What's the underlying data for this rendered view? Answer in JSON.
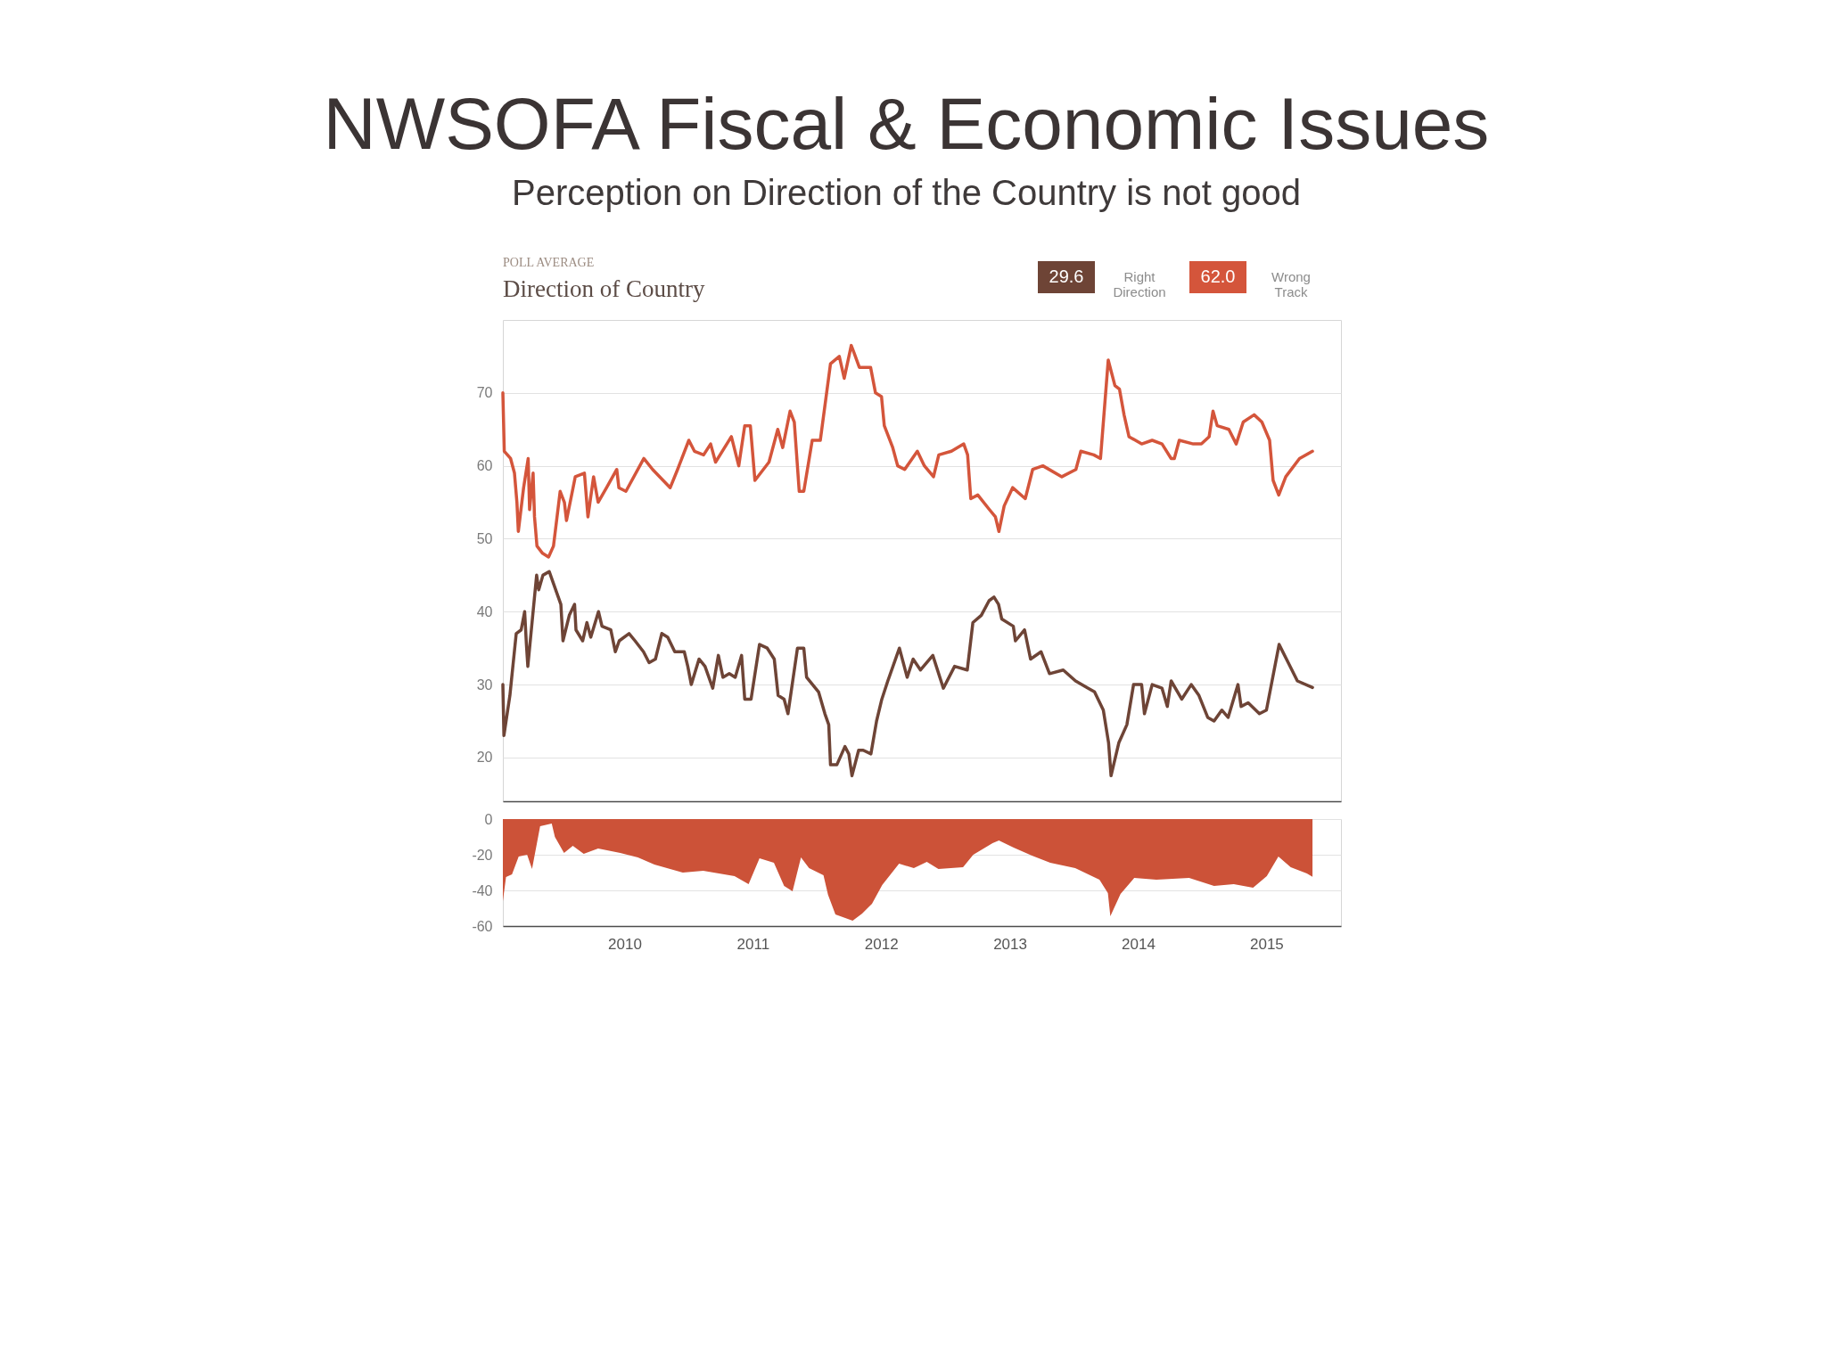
{
  "chart_data": [
    {
      "type": "line",
      "title": "NWSOFA Fiscal & Economic Issues",
      "subtitle": "Perception on Direction of the Country is not good",
      "annotations": [
        "POLL AVERAGE",
        "Direction of Country",
        "29.6",
        "62.0"
      ],
      "legend": "top right",
      "tick_labels": "y",
      "grid": "y",
      "xlim": [
        "2009-01-20",
        "2015-08-01"
      ],
      "ylim": [
        14,
        80
      ],
      "yticks": [
        20,
        30,
        40,
        50,
        60,
        70
      ],
      "series": [
        {
          "name": "Right Direction",
          "color": "#6e4436",
          "x": [
            "2009-01-20",
            "2009-01-23",
            "2009-02-09",
            "2009-02-27",
            "2009-03-13",
            "2009-03-23",
            "2009-03-28",
            "2009-04-01",
            "2009-04-26",
            "2009-05-02",
            "2009-05-14",
            "2009-06-01",
            "2009-06-12",
            "2009-06-23",
            "2009-07-04",
            "2009-07-10",
            "2009-07-28",
            "2009-08-12",
            "2009-08-16",
            "2009-09-04",
            "2009-09-16",
            "2009-09-27",
            "2009-10-19",
            "2009-10-29",
            "2009-11-23",
            "2009-12-06",
            "2009-12-17",
            "2010-01-14",
            "2010-01-31",
            "2010-02-24",
            "2010-03-12",
            "2010-03-30",
            "2010-04-17",
            "2010-05-04",
            "2010-05-24",
            "2010-06-20",
            "2010-06-30",
            "2010-07-10",
            "2010-08-01",
            "2010-08-18",
            "2010-09-09",
            "2010-09-25",
            "2010-10-08",
            "2010-10-26",
            "2010-11-12",
            "2010-11-30",
            "2010-12-09",
            "2010-12-27",
            "2011-01-20",
            "2011-02-11",
            "2011-03-03",
            "2011-03-14",
            "2011-03-31",
            "2011-04-11",
            "2011-05-08",
            "2011-05-26",
            "2011-06-03",
            "2011-07-07",
            "2011-07-25",
            "2011-08-05",
            "2011-08-10",
            "2011-08-28",
            "2011-09-20",
            "2011-10-01",
            "2011-10-10",
            "2011-10-29",
            "2011-11-11",
            "2011-12-03",
            "2011-12-19",
            "2012-01-03",
            "2012-01-20",
            "2012-02-22",
            "2012-03-15",
            "2012-04-01",
            "2012-04-22",
            "2012-05-27",
            "2012-06-26",
            "2012-07-28",
            "2012-09-02",
            "2012-09-18",
            "2012-10-12",
            "2012-11-03",
            "2012-11-17",
            "2012-11-30",
            "2012-12-09",
            "2013-01-11",
            "2013-01-17",
            "2013-02-12",
            "2013-03-01",
            "2013-03-31",
            "2013-04-24",
            "2013-06-02",
            "2013-07-07",
            "2013-08-12",
            "2013-08-30",
            "2013-09-24",
            "2013-10-09",
            "2013-10-16",
            "2013-11-07",
            "2013-11-30",
            "2013-12-19",
            "2014-01-11",
            "2014-01-19",
            "2014-02-10",
            "2014-03-10",
            "2014-03-25",
            "2014-04-05",
            "2014-05-05",
            "2014-06-01",
            "2014-06-23",
            "2014-07-18",
            "2014-08-05",
            "2014-08-27",
            "2014-09-14",
            "2014-10-12",
            "2014-10-21",
            "2014-11-10",
            "2014-12-12",
            "2015-01-01",
            "2015-02-06",
            "2015-03-04",
            "2015-03-30",
            "2015-05-12"
          ],
          "values": [
            30,
            23,
            28.5,
            37,
            37.5,
            40,
            35.5,
            32.5,
            45,
            43,
            45,
            45.5,
            44,
            42.5,
            41,
            36,
            39.5,
            41,
            37.5,
            36,
            38.5,
            36.5,
            40,
            38,
            37.5,
            34.5,
            36,
            37,
            36,
            34.5,
            33,
            33.5,
            37,
            36.5,
            34.5,
            34.5,
            32.5,
            30,
            33.5,
            32.5,
            29.5,
            34,
            31,
            31.5,
            31,
            34,
            28,
            28,
            35.5,
            35,
            33.5,
            28.5,
            28,
            26,
            35,
            35,
            31,
            29,
            26,
            24.5,
            19,
            19,
            21.5,
            20.5,
            17.5,
            21,
            21,
            20.5,
            25,
            28,
            30.5,
            35,
            31,
            33.5,
            32,
            34,
            29.5,
            32.5,
            32,
            38.5,
            39.5,
            41.5,
            42,
            41,
            39,
            38,
            36,
            37.5,
            33.5,
            34.5,
            31.5,
            32,
            30.5,
            29.5,
            29,
            26.5,
            22,
            17.5,
            22,
            24.5,
            30,
            30,
            26,
            30,
            29.5,
            27,
            30.5,
            28,
            30,
            28.5,
            25.5,
            25,
            26.5,
            25.5,
            30,
            27,
            27.5,
            26,
            26.5,
            35.5,
            33,
            30.5,
            29.6
          ]
        },
        {
          "name": "Wrong Track",
          "color": "#d4553b",
          "x": [
            "2009-01-20",
            "2009-01-24",
            "2009-02-11",
            "2009-02-22",
            "2009-03-01",
            "2009-03-05",
            "2009-03-20",
            "2009-04-02",
            "2009-04-06",
            "2009-04-16",
            "2009-04-20",
            "2009-04-27",
            "2009-05-13",
            "2009-05-30",
            "2009-06-13",
            "2009-07-02",
            "2009-07-14",
            "2009-07-20",
            "2009-08-14",
            "2009-09-09",
            "2009-09-19",
            "2009-10-05",
            "2009-10-18",
            "2009-11-11",
            "2009-12-10",
            "2009-12-16",
            "2010-01-05",
            "2010-02-25",
            "2010-03-22",
            "2010-05-11",
            "2010-06-01",
            "2010-07-03",
            "2010-07-19",
            "2010-08-14",
            "2010-09-03",
            "2010-09-17",
            "2010-11-01",
            "2010-11-22",
            "2010-12-09",
            "2010-12-25",
            "2011-01-07",
            "2011-02-16",
            "2011-03-13",
            "2011-03-27",
            "2011-04-17",
            "2011-04-29",
            "2011-05-13",
            "2011-05-26",
            "2011-06-19",
            "2011-07-12",
            "2011-08-10",
            "2011-09-04",
            "2011-09-18",
            "2011-10-08",
            "2011-10-16",
            "2011-10-31",
            "2011-12-02",
            "2011-12-16",
            "2012-01-02",
            "2012-01-10",
            "2012-02-03",
            "2012-02-17",
            "2012-03-08",
            "2012-04-13",
            "2012-05-03",
            "2012-05-29",
            "2012-06-13",
            "2012-07-19",
            "2012-08-23",
            "2012-09-03",
            "2012-09-12",
            "2012-10-02",
            "2012-11-04",
            "2012-11-21",
            "2012-12-01",
            "2012-12-16",
            "2013-01-09",
            "2013-02-14",
            "2013-03-07",
            "2013-04-05",
            "2013-05-29",
            "2013-07-08",
            "2013-07-22",
            "2013-08-28",
            "2013-09-16",
            "2013-10-08",
            "2013-10-27",
            "2013-11-09",
            "2013-11-22",
            "2013-12-06",
            "2014-01-11",
            "2014-02-10",
            "2014-03-10",
            "2014-04-05",
            "2014-04-14",
            "2014-04-28",
            "2014-06-07",
            "2014-06-30",
            "2014-07-22",
            "2014-08-02",
            "2014-08-14",
            "2014-09-16",
            "2014-10-07",
            "2014-10-27",
            "2014-11-27",
            "2014-12-19",
            "2015-01-10",
            "2015-01-20",
            "2015-02-05",
            "2015-02-25",
            "2015-04-05",
            "2015-05-12"
          ],
          "values": [
            70,
            62,
            61,
            59,
            55,
            51,
            57,
            61,
            54,
            59,
            53,
            49,
            48,
            47.5,
            49,
            56.5,
            55,
            52.5,
            58.5,
            59,
            53,
            58.5,
            55,
            57,
            59.5,
            57,
            56.5,
            61,
            59.5,
            57,
            59.5,
            63.5,
            62,
            61.5,
            63,
            60.5,
            64,
            60,
            65.5,
            65.5,
            58,
            60.5,
            65,
            62.5,
            67.5,
            66,
            56.5,
            56.5,
            63.5,
            63.5,
            74,
            75,
            72,
            76.5,
            75.5,
            73.5,
            73.5,
            70,
            69.5,
            65.5,
            62.5,
            60,
            59.5,
            62,
            60,
            58.5,
            61.5,
            62,
            63,
            61.5,
            55.5,
            56,
            54,
            53,
            51,
            54.5,
            57,
            55.5,
            59.5,
            60,
            58.5,
            59.5,
            62,
            61.5,
            61,
            74.5,
            71,
            70.5,
            67,
            64,
            63,
            63.5,
            63,
            61,
            61,
            63.5,
            63,
            63,
            64,
            67.5,
            65.5,
            65,
            63,
            66,
            67,
            66,
            63.5,
            58,
            56,
            58.5,
            61,
            62.0
          ]
        }
      ]
    },
    {
      "type": "area",
      "color": "#cc5238",
      "xlim": [
        "2009-01-20",
        "2015-08-01"
      ],
      "xticks": [
        "2010",
        "2011",
        "2012",
        "2013",
        "2014",
        "2015"
      ],
      "ylim": [
        -60,
        0
      ],
      "yticks": [
        0,
        -20,
        -40,
        -60
      ],
      "grid": "y",
      "x": [
        "2009-01-20",
        "2009-01-29",
        "2009-02-15",
        "2009-03-06",
        "2009-03-30",
        "2009-04-13",
        "2009-05-06",
        "2009-06-08",
        "2009-06-17",
        "2009-07-13",
        "2009-08-07",
        "2009-09-07",
        "2009-10-18",
        "2009-12-20",
        "2010-02-08",
        "2010-03-27",
        "2010-06-16",
        "2010-08-13",
        "2010-11-10",
        "2010-12-20",
        "2011-01-20",
        "2011-03-02",
        "2011-03-31",
        "2011-04-24",
        "2011-05-18",
        "2011-06-10",
        "2011-07-21",
        "2011-08-03",
        "2011-08-24",
        "2011-10-12",
        "2011-11-08",
        "2011-12-06",
        "2012-01-04",
        "2012-02-21",
        "2012-04-03",
        "2012-05-10",
        "2012-06-12",
        "2012-08-21",
        "2012-09-19",
        "2012-11-13",
        "2012-12-01",
        "2013-01-12",
        "2013-03-05",
        "2013-04-26",
        "2013-07-06",
        "2013-09-13",
        "2013-10-07",
        "2013-10-14",
        "2013-11-12",
        "2013-12-21",
        "2014-02-22",
        "2014-05-26",
        "2014-08-05",
        "2014-09-30",
        "2014-11-24",
        "2015-01-02",
        "2015-02-04",
        "2015-03-11",
        "2015-04-26",
        "2015-05-12"
      ],
      "values": [
        -46,
        -32.5,
        -31,
        -21,
        -20,
        -28,
        -4,
        -2.5,
        -10,
        -19,
        -15,
        -19.5,
        -16.5,
        -19,
        -21.5,
        -25.5,
        -30,
        -29,
        -32,
        -36.5,
        -22,
        -24.5,
        -37.5,
        -40.5,
        -21.5,
        -27.5,
        -31.5,
        -42.5,
        -53.5,
        -57,
        -53,
        -47.5,
        -37,
        -25,
        -27.5,
        -24,
        -28,
        -27,
        -20,
        -13.5,
        -12,
        -16,
        -20.5,
        -24.5,
        -27.5,
        -34,
        -41.5,
        -54.5,
        -42,
        -33,
        -34,
        -33,
        -37.5,
        -36.5,
        -38.5,
        -32,
        -21,
        -27,
        -30.5,
        -32.4
      ]
    }
  ]
}
